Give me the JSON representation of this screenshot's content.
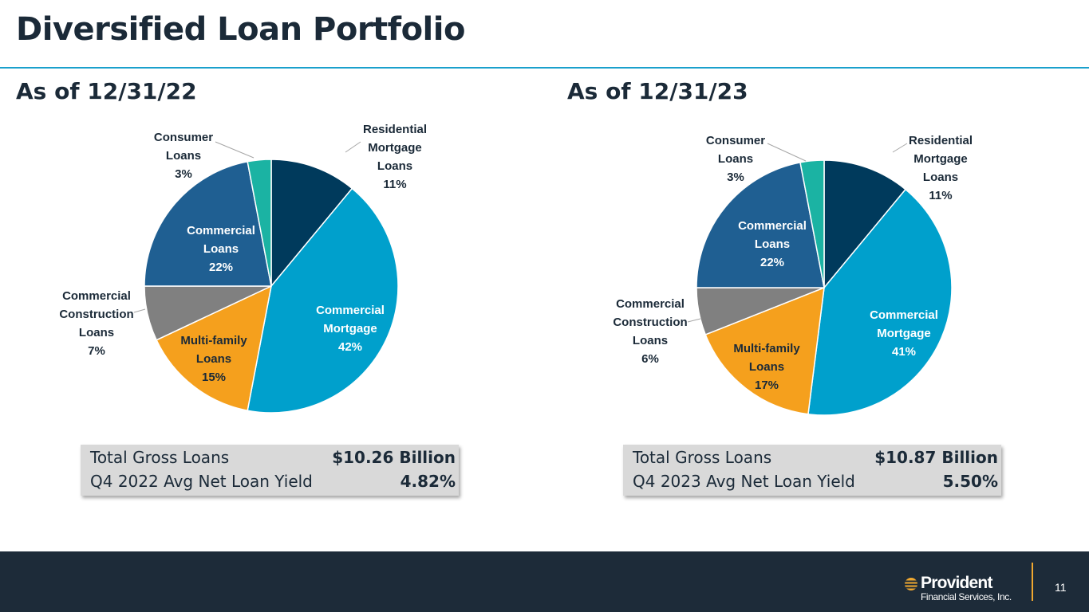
{
  "title": "Diversified Loan Portfolio",
  "colors": {
    "residential": "#003a5c",
    "commercial_mortgage": "#00a0cc",
    "multifamily": "#f5a01d",
    "construction": "#808080",
    "commercial": "#1f5f92",
    "consumer": "#1bb3a3",
    "rule": "#1aa0cc",
    "footer": "#1d2b39",
    "accent": "#f0a830"
  },
  "chart_data": [
    {
      "type": "pie",
      "title": "As of 12/31/22",
      "slices": [
        {
          "lines": [
            "Residential",
            "Mortgage",
            "Loans",
            "11%"
          ],
          "value": 11,
          "color": "#003a5c"
        },
        {
          "lines": [
            "Commercial",
            "Mortgage",
            "42%"
          ],
          "value": 42,
          "color": "#00a0cc"
        },
        {
          "lines": [
            "Multi-family",
            "Loans",
            "15%"
          ],
          "value": 15,
          "color": "#f5a01d"
        },
        {
          "lines": [
            "Commercial",
            "Construction",
            "Loans",
            "7%"
          ],
          "value": 7,
          "color": "#808080"
        },
        {
          "lines": [
            "Commercial",
            "Loans",
            "22%"
          ],
          "value": 22,
          "color": "#1f5f92"
        },
        {
          "lines": [
            "Consumer",
            "Loans",
            "3%"
          ],
          "value": 3,
          "color": "#1bb3a3"
        }
      ]
    },
    {
      "type": "pie",
      "title": "As of 12/31/23",
      "slices": [
        {
          "lines": [
            "Residential",
            "Mortgage",
            "Loans",
            "11%"
          ],
          "value": 11,
          "color": "#003a5c"
        },
        {
          "lines": [
            "Commercial",
            "Mortgage",
            "41%"
          ],
          "value": 41,
          "color": "#00a0cc"
        },
        {
          "lines": [
            "Multi-family",
            "Loans",
            "17%"
          ],
          "value": 17,
          "color": "#f5a01d"
        },
        {
          "lines": [
            "Commercial",
            "Construction",
            "Loans",
            "6%"
          ],
          "value": 6,
          "color": "#808080"
        },
        {
          "lines": [
            "Commercial",
            "Loans",
            "22%"
          ],
          "value": 22,
          "color": "#1f5f92"
        },
        {
          "lines": [
            "Consumer",
            "Loans",
            "3%"
          ],
          "value": 3,
          "color": "#1bb3a3"
        }
      ]
    }
  ],
  "summary_left": {
    "row1_label": "Total Gross Loans",
    "row1_value": "$10.26 Billion",
    "row2_label": "Q4 2022 Avg Net Loan Yield",
    "row2_value": "4.82%"
  },
  "summary_right": {
    "row1_label": "Total Gross Loans",
    "row1_value": "$10.87 Billion",
    "row2_label": "Q4 2023 Avg Net Loan Yield",
    "row2_value": "5.50%"
  },
  "footer": {
    "logo_name": "Provident",
    "logo_sub": "Financial Services, Inc.",
    "page_number": "11"
  }
}
